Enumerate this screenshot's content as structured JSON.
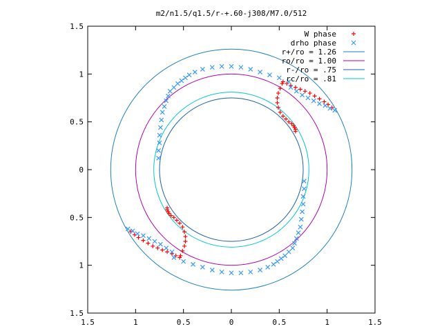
{
  "chart_data": {
    "type": "scatter",
    "title": "m2/n1.5/q1.5/r-+.60-j308/M7.0/512",
    "xlabel": "",
    "ylabel": "",
    "xlim": [
      -1.5,
      1.5
    ],
    "ylim": [
      -1.5,
      1.5
    ],
    "x_tick_values": [
      -1.5,
      -1,
      -0.5,
      0,
      0.5,
      1,
      1.5
    ],
    "x_tick_labels": [
      "1.5",
      "1",
      "0.5",
      "0",
      "0.5",
      "1",
      "1.5"
    ],
    "y_tick_values": [
      1.5,
      1,
      0.5,
      0,
      -0.5,
      -1,
      -1.5
    ],
    "y_tick_labels": [
      "1.5",
      "1",
      "0.5",
      "0",
      "0.5",
      "1",
      "1.5"
    ],
    "grid": false,
    "legend_position": "top-right",
    "circles": [
      {
        "name": "r+/ro = 1.26",
        "radius": 1.26,
        "color": "#1f7fbf"
      },
      {
        "name": "ro/ro = 1.00",
        "radius": 1.0,
        "color": "#b000b0"
      },
      {
        "name": "r-/ro = .75",
        "radius": 0.75,
        "color": "#1c5fa8"
      },
      {
        "name": "rc/ro = .81",
        "radius": 0.81,
        "color": "#00c8c8"
      }
    ],
    "series": [
      {
        "name": "W phase",
        "marker": "plus",
        "color": "#ff0000",
        "x": [
          0.53,
          0.51,
          0.49,
          0.48,
          0.48,
          0.49,
          0.51,
          0.54,
          0.57,
          0.6,
          0.63,
          0.65,
          0.66,
          0.67,
          0.67,
          0.54,
          0.58,
          0.62,
          0.67,
          0.72,
          0.77,
          0.82,
          0.87,
          0.92,
          0.97,
          1.01,
          1.05,
          -0.53,
          -0.51,
          -0.49,
          -0.48,
          -0.48,
          -0.49,
          -0.51,
          -0.54,
          -0.57,
          -0.6,
          -0.63,
          -0.65,
          -0.66,
          -0.67,
          -0.67,
          -0.54,
          -0.58,
          -0.62,
          -0.67,
          -0.72,
          -0.77,
          -0.82,
          -0.87,
          -0.92,
          -0.97,
          -1.01,
          -1.05
        ],
        "y": [
          0.9,
          0.85,
          0.8,
          0.75,
          0.7,
          0.65,
          0.6,
          0.56,
          0.53,
          0.5,
          0.48,
          0.46,
          0.44,
          0.42,
          0.4,
          0.92,
          0.9,
          0.88,
          0.86,
          0.84,
          0.82,
          0.8,
          0.77,
          0.74,
          0.71,
          0.68,
          0.65,
          -0.9,
          -0.85,
          -0.8,
          -0.75,
          -0.7,
          -0.65,
          -0.6,
          -0.56,
          -0.53,
          -0.5,
          -0.48,
          -0.46,
          -0.44,
          -0.42,
          -0.4,
          -0.92,
          -0.9,
          -0.88,
          -0.86,
          -0.84,
          -0.82,
          -0.8,
          -0.77,
          -0.74,
          -0.71,
          -0.68,
          -0.65
        ]
      },
      {
        "name": "drho phase",
        "marker": "cross",
        "color": "#3399ff",
        "x": [
          0.76,
          0.76,
          0.75,
          0.75,
          0.74,
          0.73,
          0.72,
          0.7,
          0.68,
          0.66,
          0.64,
          0.6,
          0.56,
          0.52,
          0.48,
          0.44,
          0.38,
          0.3,
          0.2,
          0.1,
          0,
          -0.1,
          -0.2,
          -0.3,
          -0.4,
          -0.5,
          -0.6,
          0.62,
          0.68,
          0.74,
          0.8,
          0.86,
          0.92,
          0.98,
          1.03,
          1.08,
          -0.76,
          -0.76,
          -0.75,
          -0.75,
          -0.74,
          -0.73,
          -0.72,
          -0.7,
          -0.68,
          -0.66,
          -0.64,
          -0.6,
          -0.56,
          -0.52,
          -0.48,
          -0.44,
          -0.38,
          -0.3,
          -0.2,
          -0.1,
          0,
          0.1,
          0.2,
          0.3,
          0.4,
          0.5,
          0.6,
          -0.62,
          -0.68,
          -0.74,
          -0.8,
          -0.86,
          -0.92,
          -0.98,
          -1.03,
          -1.08
        ],
        "y": [
          -0.12,
          -0.2,
          -0.28,
          -0.36,
          -0.44,
          -0.52,
          -0.6,
          -0.66,
          -0.72,
          -0.77,
          -0.82,
          -0.86,
          -0.9,
          -0.93,
          -0.96,
          -0.99,
          -1.02,
          -1.05,
          -1.07,
          -1.08,
          -1.08,
          -1.07,
          -1.05,
          -1.02,
          -0.99,
          -0.96,
          -0.92,
          0.86,
          0.82,
          0.78,
          0.75,
          0.72,
          0.69,
          0.67,
          0.64,
          0.62,
          0.12,
          0.2,
          0.28,
          0.36,
          0.44,
          0.52,
          0.6,
          0.66,
          0.72,
          0.77,
          0.82,
          0.86,
          0.9,
          0.93,
          0.96,
          0.99,
          1.02,
          1.05,
          1.07,
          1.08,
          1.08,
          1.07,
          1.05,
          1.02,
          0.99,
          0.96,
          0.92,
          -0.86,
          -0.82,
          -0.78,
          -0.75,
          -0.72,
          -0.69,
          -0.67,
          -0.64,
          -0.62
        ]
      }
    ]
  }
}
